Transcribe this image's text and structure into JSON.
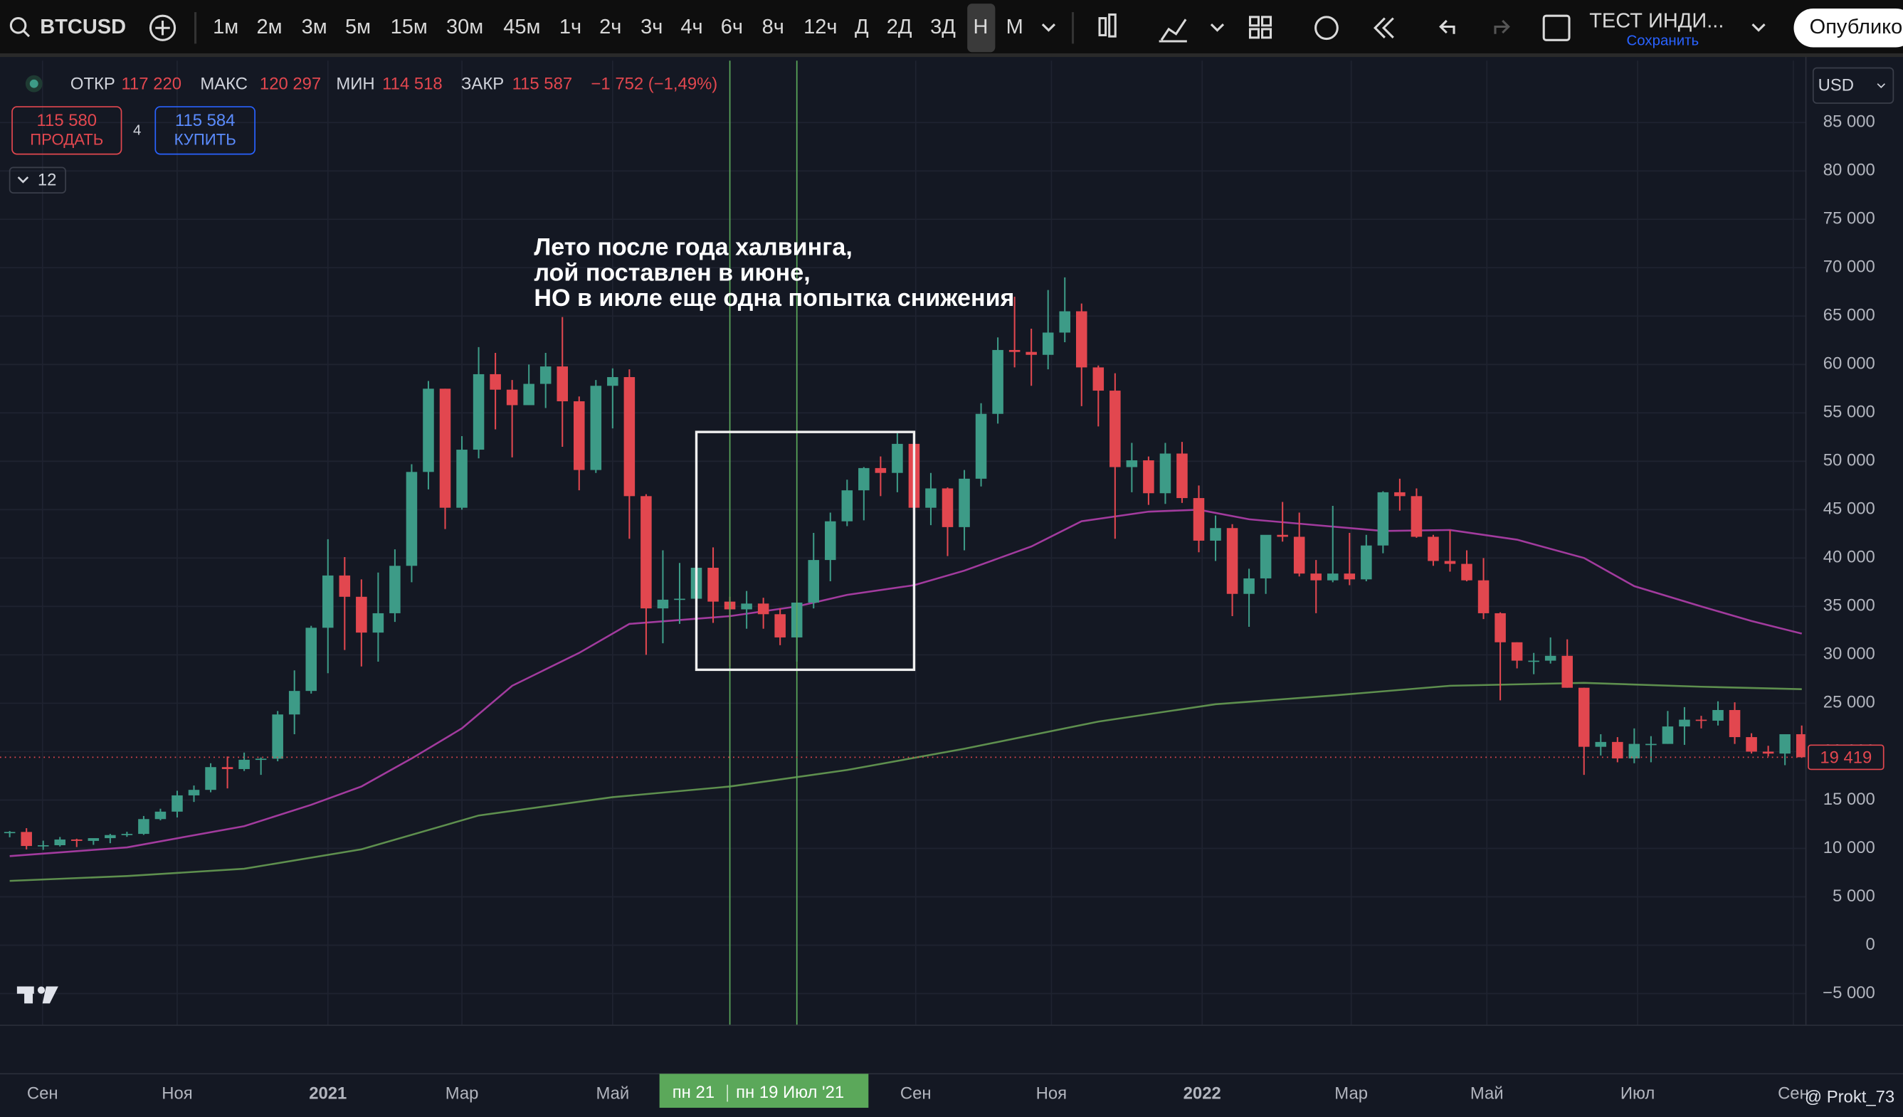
{
  "ui": {
    "toolbar": {
      "symbol": "BTCUSD",
      "intervals": [
        "1м",
        "2м",
        "3м",
        "5м",
        "15м",
        "30м",
        "45м",
        "1ч",
        "2ч",
        "3ч",
        "4ч",
        "6ч",
        "8ч",
        "12ч",
        "Д",
        "2Д",
        "3Д",
        "Н",
        "М"
      ],
      "layout_name": "ТЕСТ ИНДИ...",
      "save": "Сохранить",
      "publish": "Опублико"
    },
    "legend": {
      "open_label": "ОТКР",
      "open": "117 220",
      "high_label": "МАКС",
      "high": "120 297",
      "low_label": "МИН",
      "low": "114 518",
      "close_label": "ЗАКР",
      "close": "115 587",
      "change": "−1 752 (−1,49%)"
    },
    "trade": {
      "sell_price": "115 580",
      "sell": "ПРОДАТЬ",
      "spread": "4",
      "buy_price": "115 584",
      "buy": "КУПИТЬ"
    },
    "indicators_count": "12",
    "currency": "USD",
    "watermark": "@ Prokt_73"
  },
  "chart_data": {
    "type": "candlestick",
    "up_color": "#3d9b87",
    "down_color": "#e2474f",
    "grid": true,
    "x": [
      0,
      1,
      2,
      3,
      4,
      5,
      6,
      7,
      8,
      9,
      10,
      11,
      12,
      13,
      14,
      15,
      16,
      17,
      18,
      19,
      20,
      21,
      22,
      23,
      24,
      25,
      26,
      27,
      28,
      29,
      30,
      31,
      32,
      33,
      34,
      35,
      36,
      37,
      38,
      39,
      40,
      41,
      42,
      43,
      44,
      45,
      46,
      47,
      48,
      49,
      50,
      51,
      52,
      53,
      54,
      55,
      56,
      57,
      58,
      59,
      60,
      61,
      62,
      63,
      64,
      65,
      66,
      67,
      68,
      69,
      70,
      71,
      72,
      73,
      74,
      75,
      76,
      77,
      78,
      79,
      80,
      81,
      82,
      83,
      84,
      85,
      86,
      87,
      88,
      89,
      90,
      91,
      92,
      93,
      94,
      95,
      96,
      97,
      98,
      99,
      100,
      101,
      102,
      103,
      104,
      105,
      106,
      107
    ],
    "open": [
      11650,
      11700,
      10250,
      10330,
      10920,
      10780,
      11060,
      11380,
      11500,
      13030,
      13800,
      15480,
      16050,
      18400,
      18200,
      19160,
      19270,
      23840,
      26270,
      32800,
      38200,
      36000,
      32300,
      34300,
      39200,
      48900,
      57500,
      45200,
      51200,
      59000,
      57400,
      55800,
      58000,
      59800,
      56200,
      49100,
      57800,
      58700,
      46400,
      34800,
      35700,
      35800,
      39000,
      35500,
      34700,
      35300,
      34200,
      31800,
      35400,
      39800,
      43800,
      47000,
      49300,
      48800,
      51800,
      45200,
      47200,
      43200,
      48200,
      54900,
      61500,
      61300,
      61000,
      63300,
      65500,
      59700,
      57300,
      49400,
      50100,
      46700,
      50800,
      46200,
      41800,
      43100,
      36300,
      37900,
      42400,
      42200,
      38400,
      37700,
      38400,
      37800,
      41300,
      46800,
      46400,
      42200,
      39700,
      39400,
      37700,
      34300,
      31300,
      29400,
      29400,
      29900,
      26600,
      20500,
      21000,
      19300,
      20800,
      20800,
      22600,
      23300,
      23200,
      24300,
      21500,
      20000,
      19800,
      21800
    ],
    "high": [
      11800,
      12090,
      10800,
      11180,
      11000,
      11000,
      11500,
      11720,
      13350,
      14100,
      15960,
      16500,
      18800,
      19500,
      19900,
      19400,
      24200,
      28400,
      33000,
      41950,
      40100,
      37800,
      38500,
      40900,
      49700,
      58300,
      57500,
      52600,
      61800,
      61200,
      58400,
      60000,
      61200,
      64900,
      56700,
      58400,
      59600,
      59500,
      46600,
      40800,
      39500,
      41300,
      41100,
      36000,
      36600,
      35900,
      34800,
      35400,
      42600,
      44700,
      48100,
      49400,
      50500,
      52900,
      52800,
      48800,
      47300,
      49100,
      56000,
      62800,
      67000,
      63700,
      67700,
      69000,
      66300,
      59900,
      59100,
      51900,
      50500,
      51900,
      52000,
      47500,
      44400,
      43500,
      38900,
      41700,
      45800,
      44700,
      39800,
      45400,
      42600,
      42400,
      46900,
      48200,
      47200,
      42400,
      42900,
      40800,
      40000,
      34400,
      31300,
      30200,
      31800,
      31600,
      26600,
      21800,
      21500,
      22400,
      21600,
      24200,
      24600,
      23700,
      25200,
      25100,
      21900,
      20600,
      21800,
      22700
    ],
    "low": [
      11150,
      9900,
      9850,
      10200,
      10140,
      10370,
      10540,
      11200,
      11400,
      12900,
      13200,
      14800,
      15800,
      16200,
      18000,
      17600,
      19000,
      21800,
      26000,
      28100,
      30500,
      28800,
      29300,
      33400,
      37500,
      47100,
      43000,
      45000,
      50300,
      53300,
      50400,
      55800,
      55500,
      51500,
      47000,
      48800,
      53400,
      42000,
      30000,
      31200,
      33200,
      31000,
      33300,
      28800,
      32700,
      32700,
      31000,
      29300,
      34800,
      37600,
      43300,
      43900,
      46400,
      46800,
      42800,
      43400,
      40200,
      40800,
      47400,
      53900,
      59700,
      57800,
      59500,
      62300,
      55700,
      53600,
      42000,
      46800,
      45500,
      45600,
      45700,
      40600,
      39700,
      34000,
      32900,
      36300,
      41700,
      38100,
      34300,
      37500,
      37200,
      37600,
      40500,
      44900,
      42100,
      39200,
      38600,
      37600,
      33700,
      25300,
      28600,
      28000,
      29100,
      26600,
      17600,
      19600,
      18900,
      18800,
      18900,
      20800,
      20700,
      22400,
      22700,
      20800,
      19800,
      19500,
      18600,
      19400
    ],
    "close": [
      11700,
      10250,
      10330,
      10920,
      10780,
      11060,
      11380,
      11500,
      13030,
      13800,
      15480,
      16050,
      18400,
      18200,
      19160,
      19270,
      23840,
      26270,
      32800,
      38200,
      36000,
      32300,
      34300,
      39200,
      48900,
      57500,
      45200,
      51200,
      59000,
      57400,
      55800,
      58000,
      59800,
      56200,
      49100,
      57800,
      58700,
      46400,
      34800,
      35700,
      35800,
      39000,
      35500,
      34700,
      35300,
      34200,
      31800,
      35400,
      39800,
      43800,
      47000,
      49300,
      48800,
      51800,
      45200,
      47200,
      43200,
      48200,
      54900,
      61500,
      61300,
      61000,
      63300,
      65500,
      59700,
      57300,
      49400,
      50100,
      46700,
      50800,
      46200,
      41800,
      43100,
      36300,
      37900,
      42400,
      42200,
      38400,
      37700,
      38400,
      37800,
      41300,
      46800,
      46400,
      42200,
      39700,
      39400,
      37700,
      34300,
      31300,
      29400,
      29400,
      29900,
      26600,
      20500,
      21000,
      19300,
      20800,
      20800,
      22600,
      23300,
      23200,
      24300,
      21500,
      20000,
      19800,
      21800,
      19419
    ],
    "lines": [
      {
        "color": "#a23b9e",
        "x": [
          0,
          7,
          14,
          18,
          21,
          24,
          27,
          30,
          34,
          37,
          43,
          47,
          50,
          54,
          57,
          61,
          64,
          68,
          71,
          74,
          78,
          82,
          86,
          90,
          94,
          97,
          101,
          104,
          107
        ],
        "values": [
          9200,
          10100,
          12300,
          14500,
          16400,
          19300,
          22400,
          26800,
          30200,
          33200,
          34000,
          35000,
          36200,
          37200,
          38700,
          41200,
          43800,
          44800,
          45000,
          44000,
          43400,
          42800,
          42900,
          41900,
          40000,
          37100,
          35000,
          33500,
          32200
        ]
      },
      {
        "color": "#5e8f4e",
        "x": [
          0,
          7,
          14,
          21,
          28,
          36,
          43,
          50,
          57,
          65,
          72,
          79,
          86,
          94,
          101,
          107
        ],
        "values": [
          6650,
          7150,
          7900,
          9900,
          13400,
          15300,
          16400,
          18100,
          20300,
          23100,
          24900,
          25800,
          26800,
          27100,
          26700,
          26450
        ]
      }
    ],
    "xlim": [
      -0.58,
      107.25
    ],
    "ylim": [
      -8274,
      91395
    ],
    "xticks": [
      {
        "value": 1.96,
        "label": "Сен"
      },
      {
        "value": 10,
        "label": "Ноя"
      },
      {
        "value": 19,
        "label": "2021"
      },
      {
        "value": 27,
        "label": "Мар"
      },
      {
        "value": 36,
        "label": "Май"
      },
      {
        "value": 54.1,
        "label": "Сен"
      },
      {
        "value": 62.2,
        "label": "Ноя"
      },
      {
        "value": 71.2,
        "label": "2022"
      },
      {
        "value": 80.1,
        "label": "Мар"
      },
      {
        "value": 88.2,
        "label": "Май"
      },
      {
        "value": 97.2,
        "label": "Июл"
      },
      {
        "value": 106.5,
        "label": "Сен"
      }
    ],
    "yticks": [
      {
        "value": -5000,
        "label": "−5 000"
      },
      0,
      {
        "value": 5000,
        "label": "5 000"
      },
      {
        "value": 10000,
        "label": "10 000"
      },
      {
        "value": 15000,
        "label": "15 000"
      },
      {
        "value": 20000,
        "label": "20 000"
      },
      {
        "value": 25000,
        "label": "25 000"
      },
      {
        "value": 30000,
        "label": "30 000"
      },
      {
        "value": 35000,
        "label": "35 000"
      },
      {
        "value": 40000,
        "label": "40 000"
      },
      {
        "value": 45000,
        "label": "45 000"
      },
      {
        "value": 50000,
        "label": "50 000"
      },
      {
        "value": 55000,
        "label": "55 000"
      },
      {
        "value": 60000,
        "label": "60 000"
      },
      {
        "value": 65000,
        "label": "65 000"
      },
      {
        "value": 70000,
        "label": "70 000"
      },
      {
        "value": 75000,
        "label": "75 000"
      },
      {
        "value": 80000,
        "label": "80 000"
      },
      {
        "value": 85000,
        "label": "85 000"
      }
    ],
    "last_price": {
      "value": 19419,
      "label": "19 419"
    },
    "crosshair": {
      "x": [
        43,
        47
      ],
      "labels": [
        "пн 21",
        "пн 19 Июл '21"
      ],
      "color": "#5ba85a"
    },
    "box": {
      "x": [
        41,
        54
      ],
      "y": [
        28460,
        53030
      ]
    },
    "annotation": [
      "Лето после года халвинга,",
      "лой поставлен в июне,",
      "НО в июле еще одна попытка снижения"
    ]
  }
}
